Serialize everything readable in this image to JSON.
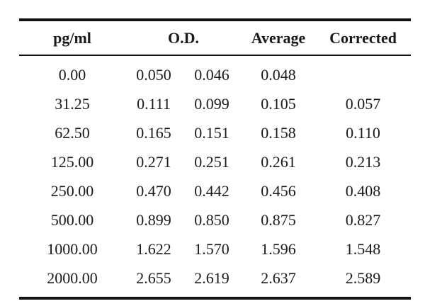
{
  "table": {
    "headers": {
      "pg": "pg/ml",
      "od": "O.D.",
      "average": "Average",
      "corrected": "Corrected"
    },
    "rows": [
      {
        "pg": "0.00",
        "od1": "0.050",
        "od2": "0.046",
        "average": "0.048",
        "corrected": ""
      },
      {
        "pg": "31.25",
        "od1": "0.111",
        "od2": "0.099",
        "average": "0.105",
        "corrected": "0.057"
      },
      {
        "pg": "62.50",
        "od1": "0.165",
        "od2": "0.151",
        "average": "0.158",
        "corrected": "0.110"
      },
      {
        "pg": "125.00",
        "od1": "0.271",
        "od2": "0.251",
        "average": "0.261",
        "corrected": "0.213"
      },
      {
        "pg": "250.00",
        "od1": "0.470",
        "od2": "0.442",
        "average": "0.456",
        "corrected": "0.408"
      },
      {
        "pg": "500.00",
        "od1": "0.899",
        "od2": "0.850",
        "average": "0.875",
        "corrected": "0.827"
      },
      {
        "pg": "1000.00",
        "od1": "1.622",
        "od2": "1.570",
        "average": "1.596",
        "corrected": "1.548"
      },
      {
        "pg": "2000.00",
        "od1": "2.655",
        "od2": "2.619",
        "average": "2.637",
        "corrected": "2.589"
      }
    ]
  }
}
